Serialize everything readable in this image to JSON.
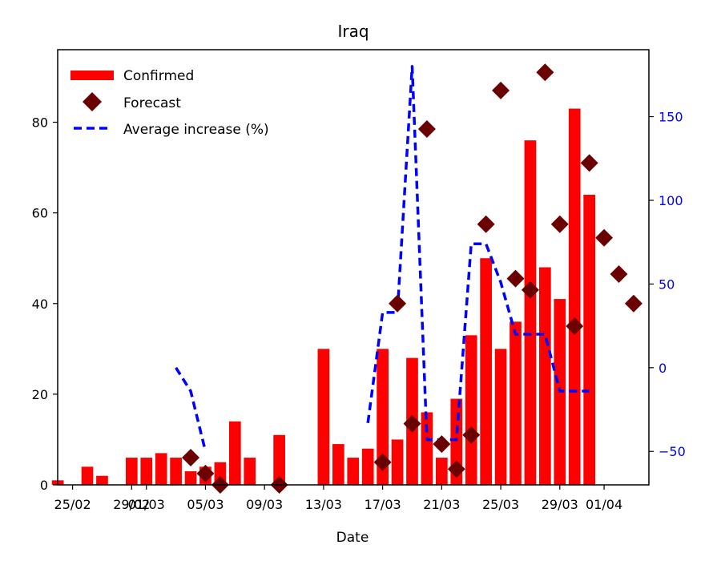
{
  "chart_data": {
    "type": "bar",
    "title": "Iraq",
    "xlabel": "Date",
    "ylabel": "",
    "ylabel_right": "",
    "x_tick_labels": [
      "25/02",
      "29/02",
      "01/03",
      "05/03",
      "09/03",
      "13/03",
      "17/03",
      "21/03",
      "25/03",
      "29/03",
      "01/04"
    ],
    "x_tick_days": [
      0,
      4,
      5,
      9,
      13,
      17,
      21,
      25,
      29,
      33,
      36
    ],
    "ylim": [
      0,
      96
    ],
    "yticks": [
      0,
      20,
      40,
      60,
      80
    ],
    "ylim_right": [
      -70,
      190
    ],
    "yticks_right": [
      -50,
      0,
      50,
      100,
      150
    ],
    "right_axis_color": "#0000ff",
    "legend_position": "top-left",
    "series": [
      {
        "name": "Confirmed",
        "kind": "bar",
        "color": "#ff0000",
        "points": [
          {
            "day": -1,
            "value": 1
          },
          {
            "day": 0,
            "value": 0
          },
          {
            "day": 1,
            "value": 4
          },
          {
            "day": 2,
            "value": 2
          },
          {
            "day": 3,
            "value": 0
          },
          {
            "day": 4,
            "value": 6
          },
          {
            "day": 5,
            "value": 6
          },
          {
            "day": 6,
            "value": 7
          },
          {
            "day": 7,
            "value": 6
          },
          {
            "day": 8,
            "value": 3
          },
          {
            "day": 9,
            "value": 4
          },
          {
            "day": 10,
            "value": 5
          },
          {
            "day": 11,
            "value": 14
          },
          {
            "day": 12,
            "value": 6
          },
          {
            "day": 13,
            "value": 0
          },
          {
            "day": 14,
            "value": 11
          },
          {
            "day": 15,
            "value": 0
          },
          {
            "day": 16,
            "value": 0
          },
          {
            "day": 17,
            "value": 30
          },
          {
            "day": 18,
            "value": 9
          },
          {
            "day": 19,
            "value": 6
          },
          {
            "day": 20,
            "value": 8
          },
          {
            "day": 21,
            "value": 30
          },
          {
            "day": 22,
            "value": 10
          },
          {
            "day": 23,
            "value": 28
          },
          {
            "day": 24,
            "value": 16
          },
          {
            "day": 25,
            "value": 6
          },
          {
            "day": 26,
            "value": 19
          },
          {
            "day": 27,
            "value": 33
          },
          {
            "day": 28,
            "value": 50
          },
          {
            "day": 29,
            "value": 30
          },
          {
            "day": 30,
            "value": 36
          },
          {
            "day": 31,
            "value": 76
          },
          {
            "day": 32,
            "value": 48
          },
          {
            "day": 33,
            "value": 41
          },
          {
            "day": 34,
            "value": 83
          },
          {
            "day": 35,
            "value": 64
          }
        ]
      },
      {
        "name": "Forecast",
        "kind": "scatter",
        "marker": "diamond",
        "color": "#6b0000",
        "points": [
          {
            "day": 8,
            "value": 6
          },
          {
            "day": 9,
            "value": 2.5
          },
          {
            "day": 10,
            "value": 0
          },
          {
            "day": 14,
            "value": 0
          },
          {
            "day": 21,
            "value": 5
          },
          {
            "day": 22,
            "value": 40
          },
          {
            "day": 23,
            "value": 13.5
          },
          {
            "day": 24,
            "value": 78.5
          },
          {
            "day": 25,
            "value": 9
          },
          {
            "day": 26,
            "value": 3.5
          },
          {
            "day": 27,
            "value": 11
          },
          {
            "day": 28,
            "value": 57.5
          },
          {
            "day": 29,
            "value": 87
          },
          {
            "day": 30,
            "value": 45.5
          },
          {
            "day": 31,
            "value": 43
          },
          {
            "day": 32,
            "value": 91
          },
          {
            "day": 33,
            "value": 57.5
          },
          {
            "day": 34,
            "value": 35
          },
          {
            "day": 35,
            "value": 71
          },
          {
            "day": 36,
            "value": 54.5
          },
          {
            "day": 37,
            "value": 46.5
          },
          {
            "day": 38,
            "value": 40
          }
        ]
      },
      {
        "name": "Average increase (%)",
        "kind": "line",
        "axis": "right",
        "style": "dashed",
        "color": "#0000ff",
        "segments": [
          [
            {
              "day": 7,
              "value": 0
            },
            {
              "day": 8,
              "value": -14
            },
            {
              "day": 9,
              "value": -50
            }
          ],
          [
            {
              "day": 20,
              "value": -33
            },
            {
              "day": 21,
              "value": 33
            },
            {
              "day": 22,
              "value": 33
            },
            {
              "day": 23,
              "value": 180
            },
            {
              "day": 24,
              "value": -43
            },
            {
              "day": 25,
              "value": -43
            },
            {
              "day": 26,
              "value": -43
            },
            {
              "day": 27,
              "value": 74
            },
            {
              "day": 28,
              "value": 74
            },
            {
              "day": 29,
              "value": 51
            },
            {
              "day": 30,
              "value": 20
            },
            {
              "day": 31,
              "value": 20
            },
            {
              "day": 32,
              "value": 20
            },
            {
              "day": 33,
              "value": -14
            },
            {
              "day": 34,
              "value": -14
            },
            {
              "day": 35,
              "value": -14
            }
          ]
        ]
      }
    ]
  }
}
